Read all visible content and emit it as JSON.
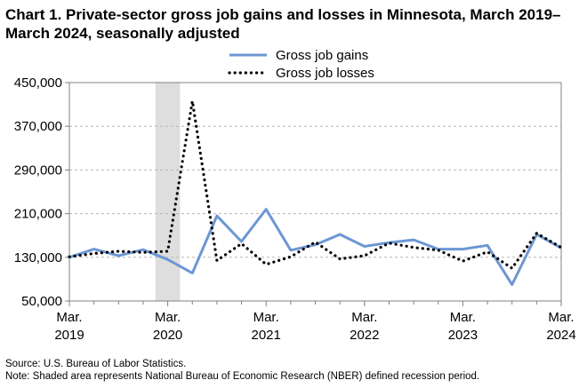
{
  "title": "Chart 1. Private-sector gross job gains and losses in Minnesota, March 2019–March 2024, seasonally adjusted",
  "source_note": "Source: U.S. Bureau of Labor Statistics.",
  "shade_note": "Note: Shaded area represents National Bureau of Economic Research (NBER) defined  recession period.",
  "chart_data": {
    "type": "line",
    "title": "Chart 1. Private-sector gross job gains and losses in Minnesota, March 2019–March 2024, seasonally adjusted",
    "ylim": [
      50000,
      450000
    ],
    "y_ticks": [
      "450,000",
      "370,000",
      "290,000",
      "210,000",
      "130,000",
      "50,000"
    ],
    "y_tick_values": [
      450000,
      370000,
      290000,
      210000,
      130000,
      50000
    ],
    "x_ticks": [
      {
        "line1": "Mar.",
        "line2": "2019",
        "index": 0
      },
      {
        "line1": "Mar.",
        "line2": "2020",
        "index": 4
      },
      {
        "line1": "Mar.",
        "line2": "2021",
        "index": 8
      },
      {
        "line1": "Mar.",
        "line2": "2022",
        "index": 12
      },
      {
        "line1": "Mar.",
        "line2": "2023",
        "index": 16
      },
      {
        "line1": "Mar.",
        "line2": "2024",
        "index": 20
      }
    ],
    "categories": [
      "Mar 2019",
      "Jun 2019",
      "Sep 2019",
      "Dec 2019",
      "Mar 2020",
      "Jun 2020",
      "Sep 2020",
      "Dec 2020",
      "Mar 2021",
      "Jun 2021",
      "Sep 2021",
      "Dec 2021",
      "Mar 2022",
      "Jun 2022",
      "Sep 2022",
      "Dec 2022",
      "Mar 2023",
      "Jun 2023",
      "Sep 2023",
      "Dec 2023",
      "Mar 2024"
    ],
    "recession": {
      "start_index": 3.5,
      "end_index": 4.5
    },
    "legend_position": "top-center",
    "grid": "horizontal dashed",
    "series": [
      {
        "name": "Gross job gains",
        "color": "#6d97d4",
        "style": "solid",
        "values": [
          130000,
          145000,
          133000,
          144000,
          126000,
          101000,
          206000,
          159000,
          218000,
          143000,
          153000,
          172000,
          150000,
          157000,
          162000,
          145000,
          145000,
          152000,
          80000,
          172000,
          147000
        ]
      },
      {
        "name": "Gross job losses",
        "color": "#000000",
        "style": "dotted",
        "values": [
          131000,
          137000,
          141000,
          139000,
          141000,
          416000,
          124000,
          155000,
          117000,
          131000,
          158000,
          127000,
          133000,
          156000,
          148000,
          143000,
          123000,
          140000,
          110000,
          174000,
          148000
        ]
      }
    ]
  }
}
